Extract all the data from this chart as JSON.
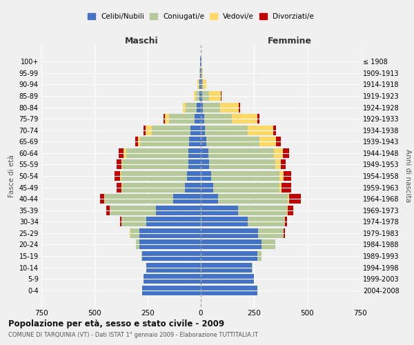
{
  "age_groups": [
    "0-4",
    "5-9",
    "10-14",
    "15-19",
    "20-24",
    "25-29",
    "30-34",
    "35-39",
    "40-44",
    "45-49",
    "50-54",
    "55-59",
    "60-64",
    "65-69",
    "70-74",
    "75-79",
    "80-84",
    "85-89",
    "90-94",
    "95-99",
    "100+"
  ],
  "birth_years": [
    "2004-2008",
    "1999-2003",
    "1994-1998",
    "1989-1993",
    "1984-1988",
    "1979-1983",
    "1974-1978",
    "1969-1973",
    "1964-1968",
    "1959-1963",
    "1954-1958",
    "1949-1953",
    "1944-1948",
    "1939-1943",
    "1934-1938",
    "1929-1933",
    "1924-1928",
    "1919-1923",
    "1914-1918",
    "1909-1913",
    "≤ 1908"
  ],
  "colors": {
    "celibi": "#4472c4",
    "coniugati": "#b5c99a",
    "vedovi": "#ffd966",
    "divorziati": "#c00000"
  },
  "maschi": {
    "celibi": [
      275,
      270,
      255,
      275,
      290,
      290,
      255,
      210,
      130,
      75,
      65,
      60,
      60,
      55,
      50,
      30,
      20,
      8,
      5,
      3,
      2
    ],
    "coniugati": [
      0,
      0,
      0,
      5,
      15,
      40,
      120,
      220,
      320,
      295,
      310,
      310,
      290,
      230,
      180,
      120,
      50,
      15,
      5,
      2,
      0
    ],
    "vedovi": [
      0,
      0,
      0,
      0,
      0,
      5,
      0,
      0,
      5,
      5,
      5,
      5,
      15,
      10,
      30,
      20,
      15,
      10,
      5,
      2,
      0
    ],
    "divorziati": [
      0,
      0,
      0,
      0,
      0,
      0,
      5,
      15,
      20,
      20,
      25,
      20,
      20,
      15,
      10,
      5,
      0,
      0,
      0,
      0,
      0
    ]
  },
  "femmine": {
    "celibi": [
      265,
      250,
      240,
      265,
      285,
      270,
      220,
      175,
      80,
      60,
      50,
      40,
      35,
      25,
      20,
      15,
      10,
      8,
      5,
      3,
      2
    ],
    "coniugati": [
      0,
      0,
      5,
      20,
      65,
      120,
      175,
      230,
      330,
      310,
      320,
      310,
      310,
      250,
      200,
      130,
      80,
      30,
      5,
      2,
      0
    ],
    "vedovi": [
      0,
      0,
      0,
      0,
      0,
      0,
      0,
      5,
      5,
      10,
      20,
      25,
      40,
      80,
      120,
      120,
      90,
      55,
      15,
      5,
      0
    ],
    "divorziati": [
      0,
      0,
      0,
      0,
      0,
      5,
      10,
      25,
      55,
      45,
      35,
      25,
      30,
      20,
      15,
      10,
      5,
      5,
      0,
      0,
      0
    ]
  },
  "title": "Popolazione per età, sesso e stato civile - 2009",
  "subtitle": "COMUNE DI TARQUINIA (VT) - Dati ISTAT 1° gennaio 2009 - Elaborazione TUTTITALIA.IT",
  "xlabel_left": "Maschi",
  "xlabel_right": "Femmine",
  "ylabel_left": "Fasce di età",
  "ylabel_right": "Anni di nascita",
  "xlim": 750,
  "legend_labels": [
    "Celibi/Nubili",
    "Coniugati/e",
    "Vedovi/e",
    "Divorziati/e"
  ],
  "bg_color": "#f0f0f0",
  "grid_color": "#ffffff"
}
